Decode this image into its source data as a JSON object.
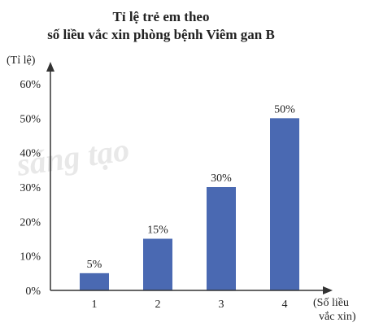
{
  "chart_data": {
    "type": "bar",
    "title_lines": [
      "Tỉ lệ trẻ em theo",
      "số liều vắc xin phòng bệnh Viêm gan B"
    ],
    "ylabel": "(Tỉ lệ)",
    "xlabel_lines": [
      "(Số liều",
      "vắc xin)"
    ],
    "categories": [
      "1",
      "2",
      "3",
      "4"
    ],
    "values": [
      5,
      15,
      30,
      50
    ],
    "data_labels": [
      "5%",
      "15%",
      "30%",
      "50%"
    ],
    "yticks": [
      "0%",
      "10%",
      "20%",
      "30%",
      "40%",
      "50%",
      "60%"
    ],
    "ylim": [
      0,
      60
    ],
    "grid": false,
    "bar_color": "#4a69b2",
    "watermark": "sáng tạo"
  }
}
